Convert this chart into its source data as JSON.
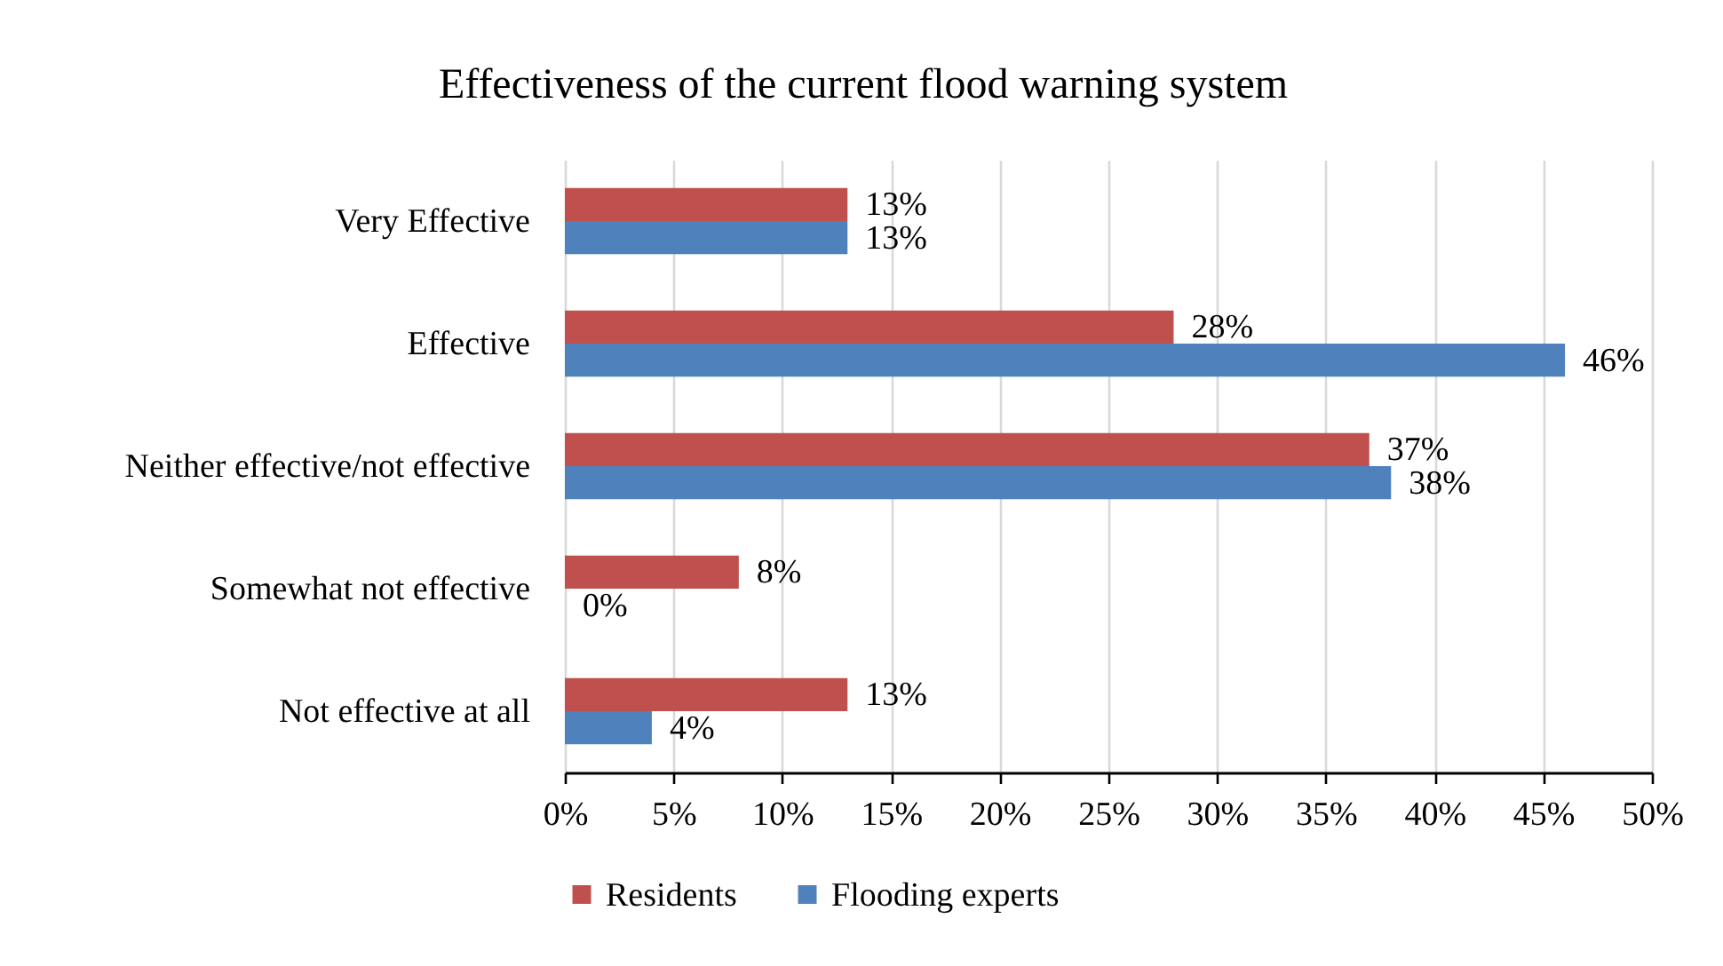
{
  "chart_data": {
    "type": "bar",
    "orientation": "horizontal",
    "title": "Effectiveness of the current flood warning system",
    "categories": [
      "Very Effective",
      "Effective",
      "Neither effective/not effective",
      "Somewhat not effective",
      "Not effective at all"
    ],
    "series": [
      {
        "name": "Residents",
        "color": "#c0504d",
        "values": [
          13,
          28,
          37,
          8,
          13
        ],
        "value_labels": [
          "13%",
          "28%",
          "37%",
          "8%",
          "13%"
        ]
      },
      {
        "name": "Flooding experts",
        "color": "#4f81bd",
        "values": [
          13,
          46,
          38,
          0,
          4
        ],
        "value_labels": [
          "13%",
          "46%",
          "38%",
          "0%",
          "4%"
        ]
      }
    ],
    "xlim": [
      0,
      50
    ],
    "xticks": [
      {
        "value": 0,
        "label": "0%"
      },
      {
        "value": 5,
        "label": "5%"
      },
      {
        "value": 10,
        "label": "10%"
      },
      {
        "value": 15,
        "label": "15%"
      },
      {
        "value": 20,
        "label": "20%"
      },
      {
        "value": 25,
        "label": "25%"
      },
      {
        "value": 30,
        "label": "30%"
      },
      {
        "value": 35,
        "label": "35%"
      },
      {
        "value": 40,
        "label": "40%"
      },
      {
        "value": 45,
        "label": "45%"
      },
      {
        "value": 50,
        "label": "50%"
      }
    ],
    "grid": "x",
    "legend": "bottom"
  }
}
